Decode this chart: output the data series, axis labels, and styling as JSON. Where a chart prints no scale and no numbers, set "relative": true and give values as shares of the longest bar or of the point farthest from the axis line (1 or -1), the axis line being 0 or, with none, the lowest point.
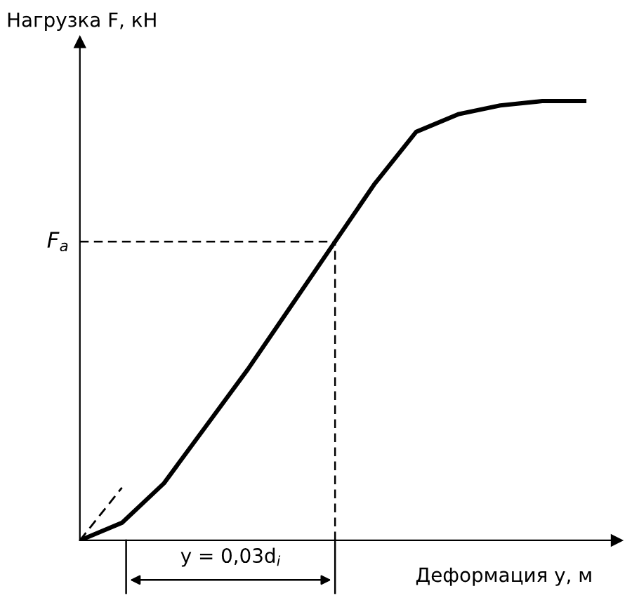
{
  "chart_data": {
    "type": "line",
    "relative": true,
    "xlabel": "Деформация y, м",
    "ylabel": "Нагрузка F, кН",
    "categories": [
      null,
      null,
      null,
      null,
      null,
      null,
      null,
      null,
      null,
      null,
      null,
      null,
      null
    ],
    "series": [
      {
        "color": "#000000",
        "values": [
          0,
          0.04,
          0.13,
          0.26,
          0.39,
          0.53,
          0.67,
          0.81,
          0.93,
          0.97,
          0.99,
          1.0,
          1.0
        ]
      },
      {
        "color": "#000000",
        "line_style": "dashed",
        "values": [
          0,
          0.12,
          null,
          null,
          null,
          null,
          null,
          null,
          null,
          null,
          null,
          null,
          null
        ]
      }
    ],
    "ref_lines": [
      {
        "axis": "y",
        "value": 0.68,
        "label": "F$_{a}$",
        "line_style": "dashed"
      }
    ],
    "annotations": [
      "y = 0,03d$_{i}$"
    ]
  }
}
